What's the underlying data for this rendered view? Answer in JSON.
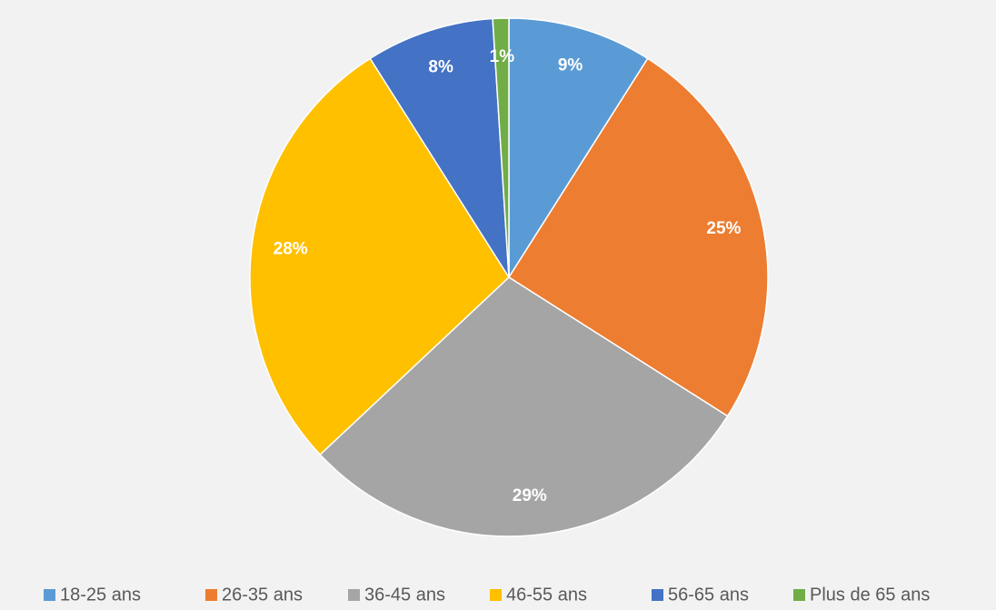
{
  "chart_data": {
    "type": "pie",
    "categories": [
      "18-25 ans",
      "26-35 ans",
      "36-45 ans",
      "46-55 ans",
      "56-65 ans",
      "Plus de 65 ans"
    ],
    "values": [
      9,
      25,
      29,
      28,
      8,
      1
    ],
    "value_labels": [
      "9%",
      "25%",
      "29%",
      "28%",
      "8%",
      "1%"
    ],
    "colors": [
      "#5b9bd5",
      "#ed7d31",
      "#a5a5a5",
      "#ffc000",
      "#4472c4",
      "#70ad47"
    ],
    "legend": "bottom"
  }
}
